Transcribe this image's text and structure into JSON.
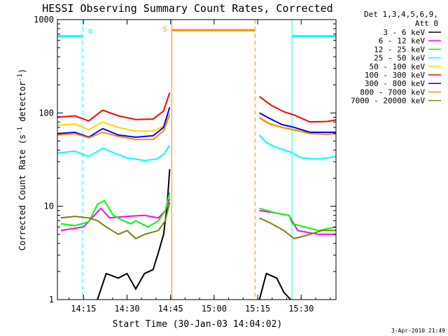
{
  "chart_data": {
    "type": "line",
    "title": "HESSI Observing Summary Count Rates, Corrected",
    "xlabel": "Start Time (30-Jan-03 14:04:02)",
    "ylabel_main": "Corrected Count Rate (s",
    "ylabel_sup1": "-1",
    "ylabel_mid": " detector",
    "ylabel_sup2": "-1",
    "ylabel_end": ")",
    "y_scale": "log",
    "xlim": [
      14.1,
      15.7
    ],
    "ylim": [
      1,
      1000
    ],
    "x_ticks": [
      {
        "v": 14.25,
        "label": "14:15"
      },
      {
        "v": 14.5,
        "label": "14:30"
      },
      {
        "v": 14.75,
        "label": "14:45"
      },
      {
        "v": 15.0,
        "label": "15:00"
      },
      {
        "v": 15.25,
        "label": "15:15"
      },
      {
        "v": 15.5,
        "label": "15:30"
      }
    ],
    "y_ticks": [
      {
        "v": 1,
        "label": "1"
      },
      {
        "v": 10,
        "label": "10"
      },
      {
        "v": 100,
        "label": "100"
      },
      {
        "v": 1000,
        "label": "1000"
      }
    ],
    "legend_header": [
      "Det 1,3,4,5,6,9,",
      "Att 0"
    ],
    "legend_position": "right",
    "series": [
      {
        "name": "3 - 6 keV",
        "color": "#000000",
        "seg1": [
          [
            14.33,
            1.0
          ],
          [
            14.38,
            1.9
          ],
          [
            14.45,
            1.7
          ],
          [
            14.5,
            1.9
          ],
          [
            14.55,
            1.3
          ],
          [
            14.6,
            1.9
          ],
          [
            14.65,
            2.1
          ],
          [
            14.68,
            3.2
          ],
          [
            14.71,
            5.0
          ],
          [
            14.73,
            10
          ],
          [
            14.745,
            25
          ]
        ],
        "seg2": [
          [
            15.26,
            1.0
          ],
          [
            15.3,
            1.9
          ],
          [
            15.36,
            1.7
          ],
          [
            15.4,
            1.2
          ],
          [
            15.44,
            1.0
          ]
        ]
      },
      {
        "name": "6 - 12 keV",
        "color": "#ff00ff",
        "seg1": [
          [
            14.12,
            5.5
          ],
          [
            14.25,
            6.0
          ],
          [
            14.35,
            9.5
          ],
          [
            14.4,
            7.5
          ],
          [
            14.5,
            7.8
          ],
          [
            14.6,
            8.0
          ],
          [
            14.68,
            7.5
          ],
          [
            14.72,
            9.0
          ],
          [
            14.745,
            12
          ]
        ],
        "seg2": [
          [
            15.26,
            9.0
          ],
          [
            15.35,
            8.5
          ],
          [
            15.43,
            8.0
          ],
          [
            15.48,
            5.5
          ],
          [
            15.6,
            5.0
          ],
          [
            15.7,
            5.0
          ]
        ]
      },
      {
        "name": "12 - 25 keV",
        "color": "#00ff00",
        "seg1": [
          [
            14.12,
            6.5
          ],
          [
            14.2,
            6.2
          ],
          [
            14.28,
            6.8
          ],
          [
            14.33,
            10.5
          ],
          [
            14.37,
            11.5
          ],
          [
            14.42,
            8.0
          ],
          [
            14.48,
            7.0
          ],
          [
            14.52,
            6.5
          ],
          [
            14.55,
            7.0
          ],
          [
            14.62,
            6.0
          ],
          [
            14.68,
            7.0
          ],
          [
            14.72,
            9.0
          ],
          [
            14.745,
            14
          ]
        ],
        "seg2": [
          [
            15.26,
            9.5
          ],
          [
            15.35,
            8.5
          ],
          [
            15.43,
            8.0
          ],
          [
            15.45,
            6.5
          ],
          [
            15.6,
            5.5
          ],
          [
            15.7,
            6.0
          ]
        ]
      },
      {
        "name": "25 - 50 keV",
        "color": "#00ffff",
        "seg1": [
          [
            14.1,
            37
          ],
          [
            14.2,
            39
          ],
          [
            14.28,
            34
          ],
          [
            14.36,
            42
          ],
          [
            14.43,
            37
          ],
          [
            14.5,
            33
          ],
          [
            14.6,
            31
          ],
          [
            14.67,
            32
          ],
          [
            14.71,
            36
          ],
          [
            14.745,
            45
          ]
        ],
        "seg2": [
          [
            15.26,
            58
          ],
          [
            15.3,
            48
          ],
          [
            15.37,
            42
          ],
          [
            15.44,
            38
          ],
          [
            15.5,
            33
          ],
          [
            15.6,
            32
          ],
          [
            15.7,
            34
          ]
        ]
      },
      {
        "name": "50 - 100 keV",
        "color": "#ffd700",
        "seg1": [
          [
            14.1,
            74
          ],
          [
            14.2,
            76
          ],
          [
            14.28,
            66
          ],
          [
            14.36,
            80
          ],
          [
            14.45,
            70
          ],
          [
            14.55,
            64
          ],
          [
            14.65,
            64
          ],
          [
            14.71,
            72
          ],
          [
            14.745,
            100
          ]
        ],
        "seg2": [
          [
            15.26,
            90
          ],
          [
            15.32,
            77
          ],
          [
            15.39,
            70
          ],
          [
            15.46,
            65
          ],
          [
            15.5,
            63
          ],
          [
            15.6,
            62
          ],
          [
            15.7,
            62
          ]
        ]
      },
      {
        "name": "100 - 300 keV",
        "color": "#ff0000",
        "seg1": [
          [
            14.1,
            90
          ],
          [
            14.2,
            93
          ],
          [
            14.28,
            82
          ],
          [
            14.36,
            107
          ],
          [
            14.45,
            93
          ],
          [
            14.55,
            85
          ],
          [
            14.65,
            86
          ],
          [
            14.71,
            105
          ],
          [
            14.745,
            165
          ]
        ],
        "seg2": [
          [
            15.26,
            150
          ],
          [
            15.33,
            120
          ],
          [
            15.4,
            103
          ],
          [
            15.46,
            95
          ],
          [
            15.55,
            80
          ],
          [
            15.65,
            81
          ],
          [
            15.7,
            84
          ]
        ]
      },
      {
        "name": "300 - 800 keV",
        "color": "#0000ff",
        "seg1": [
          [
            14.1,
            60
          ],
          [
            14.2,
            62
          ],
          [
            14.28,
            55
          ],
          [
            14.36,
            68
          ],
          [
            14.45,
            58
          ],
          [
            14.55,
            55
          ],
          [
            14.65,
            57
          ],
          [
            14.71,
            70
          ],
          [
            14.745,
            115
          ]
        ],
        "seg2": [
          [
            15.26,
            100
          ],
          [
            15.32,
            87
          ],
          [
            15.39,
            75
          ],
          [
            15.46,
            70
          ],
          [
            15.55,
            62
          ],
          [
            15.65,
            62
          ],
          [
            15.7,
            62
          ]
        ]
      },
      {
        "name": "800 - 7000 keV",
        "color": "#ff8c00",
        "seg1": [
          [
            14.1,
            58
          ],
          [
            14.2,
            60
          ],
          [
            14.28,
            54
          ],
          [
            14.36,
            62
          ],
          [
            14.45,
            56
          ],
          [
            14.55,
            52
          ],
          [
            14.65,
            52
          ],
          [
            14.71,
            64
          ],
          [
            14.745,
            95
          ]
        ],
        "seg2": [
          [
            15.26,
            88
          ],
          [
            15.32,
            76
          ],
          [
            15.39,
            70
          ],
          [
            15.46,
            66
          ],
          [
            15.55,
            60
          ],
          [
            15.65,
            59
          ],
          [
            15.7,
            60
          ]
        ]
      },
      {
        "name": "7000 - 20000 keV",
        "color": "#808000",
        "seg1": [
          [
            14.12,
            7.5
          ],
          [
            14.2,
            7.8
          ],
          [
            14.28,
            7.5
          ],
          [
            14.33,
            7.0
          ],
          [
            14.38,
            6.0
          ],
          [
            14.45,
            5.0
          ],
          [
            14.5,
            5.5
          ],
          [
            14.55,
            4.5
          ],
          [
            14.6,
            5.0
          ],
          [
            14.68,
            5.5
          ],
          [
            14.72,
            7.0
          ],
          [
            14.745,
            11
          ]
        ],
        "seg2": [
          [
            15.26,
            7.5
          ],
          [
            15.33,
            6.5
          ],
          [
            15.4,
            5.5
          ],
          [
            15.46,
            4.5
          ],
          [
            15.55,
            5.0
          ],
          [
            15.62,
            5.5
          ],
          [
            15.7,
            5.5
          ]
        ]
      }
    ],
    "annotations": {
      "night_label": "N",
      "saa_label": "S",
      "night_color": "#00ffff",
      "saa_color": "#ff8c00",
      "vlines": [
        {
          "x": 14.245,
          "color": "#00ffff",
          "style": "dashed"
        },
        {
          "x": 14.757,
          "color": "#ff8c00",
          "style": "solid"
        },
        {
          "x": 15.235,
          "color": "#ff8c00",
          "style": "dashed"
        },
        {
          "x": 15.447,
          "color": "#00ffff",
          "style": "solid"
        },
        {
          "x": 15.733,
          "color": "#00ffff",
          "style": "dashed"
        }
      ],
      "night_bars": [
        [
          14.1,
          14.245,
          665
        ],
        [
          15.447,
          15.733,
          665
        ]
      ],
      "saa_bars": [
        [
          14.757,
          15.235,
          770
        ]
      ]
    }
  },
  "timestamp": "3-Apr-2010 21:49"
}
